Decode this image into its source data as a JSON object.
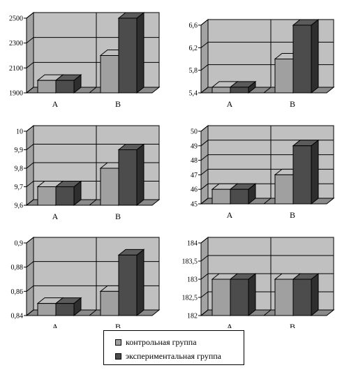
{
  "colors": {
    "wall": "#c0c0c0",
    "floor": "#8a8a8a",
    "grid": "#000000",
    "control": "#a0a0a0",
    "experimental": "#4c4c4c"
  },
  "legend": {
    "control_label": "контрольная группа",
    "experimental_label": "экспериментальная группа"
  },
  "chart_data": [
    {
      "type": "bar",
      "categories": [
        "A",
        "B"
      ],
      "series": [
        {
          "name": "контрольная группа",
          "values": [
            2000,
            2200
          ]
        },
        {
          "name": "экспериментальная группа",
          "values": [
            2000,
            2500
          ]
        }
      ],
      "ylim": [
        1900,
        2500
      ],
      "yticks": [
        1900,
        2100,
        2300,
        2500
      ],
      "ytick_labels": [
        "1900",
        "2100",
        "2300",
        "2500"
      ],
      "grid": true
    },
    {
      "type": "bar",
      "categories": [
        "A",
        "B"
      ],
      "series": [
        {
          "name": "контрольная группа",
          "values": [
            5.5,
            6.0
          ]
        },
        {
          "name": "экспериментальная группа",
          "values": [
            5.5,
            6.6
          ]
        }
      ],
      "ylim": [
        5.4,
        6.6
      ],
      "yticks": [
        5.4,
        5.8,
        6.2,
        6.6
      ],
      "ytick_labels": [
        "5,4",
        "5,8",
        "6,2",
        "6,6"
      ],
      "grid": true
    },
    {
      "type": "bar",
      "categories": [
        "A",
        "B"
      ],
      "series": [
        {
          "name": "контрольная группа",
          "values": [
            9.7,
            9.8
          ]
        },
        {
          "name": "экспериментальная группа",
          "values": [
            9.7,
            9.9
          ]
        }
      ],
      "ylim": [
        9.6,
        10
      ],
      "yticks": [
        9.6,
        9.7,
        9.8,
        9.9,
        10
      ],
      "ytick_labels": [
        "9,6",
        "9,7",
        "9,8",
        "9,9",
        "10"
      ],
      "grid": true
    },
    {
      "type": "bar",
      "categories": [
        "A",
        "B"
      ],
      "series": [
        {
          "name": "контрольная группа",
          "values": [
            46,
            47
          ]
        },
        {
          "name": "экспериментальная группа",
          "values": [
            46,
            49
          ]
        }
      ],
      "ylim": [
        45,
        50
      ],
      "yticks": [
        45,
        46,
        47,
        48,
        49,
        50
      ],
      "ytick_labels": [
        "45",
        "46",
        "47",
        "48",
        "49",
        "50"
      ],
      "grid": true
    },
    {
      "type": "bar",
      "categories": [
        "A",
        "B"
      ],
      "series": [
        {
          "name": "контрольная группа",
          "values": [
            0.85,
            0.86
          ]
        },
        {
          "name": "экспериментальная группа",
          "values": [
            0.85,
            0.89
          ]
        }
      ],
      "ylim": [
        0.84,
        0.9
      ],
      "yticks": [
        0.84,
        0.86,
        0.88,
        0.9
      ],
      "ytick_labels": [
        "0,84",
        "0,86",
        "0,88",
        "0,9"
      ],
      "grid": true
    },
    {
      "type": "bar",
      "categories": [
        "A",
        "B"
      ],
      "series": [
        {
          "name": "контрольная группа",
          "values": [
            183,
            183
          ]
        },
        {
          "name": "экспериментальная группа",
          "values": [
            183,
            183
          ]
        }
      ],
      "ylim": [
        182,
        184
      ],
      "yticks": [
        182,
        182.5,
        183,
        183.5,
        184
      ],
      "ytick_labels": [
        "182",
        "182,5",
        "183",
        "183,5",
        "184"
      ],
      "grid": true
    }
  ]
}
